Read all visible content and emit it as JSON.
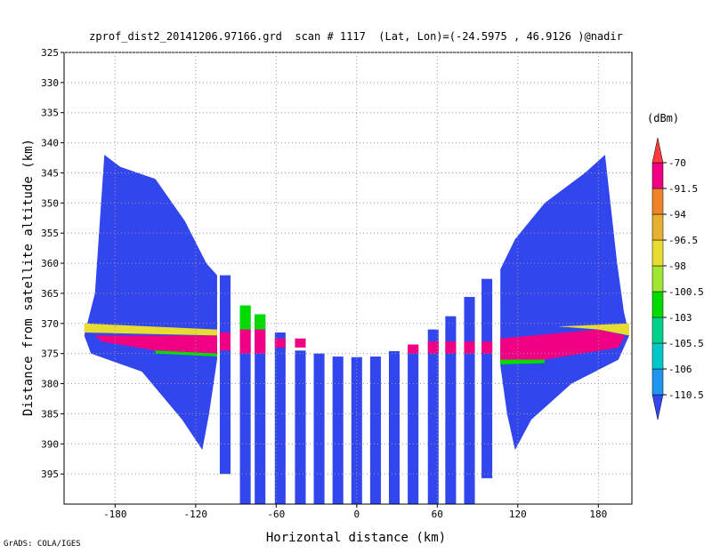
{
  "chart_data": {
    "type": "field",
    "title": "zprof_dist2_20141206.97166.grd  scan # 1117  (Lat, Lon)=(-24.5975 , 46.9126 )@nadir",
    "x_label": "Horizontal distance (km)",
    "y_label": "Distance from satellite altitude (km)",
    "credit": "GrADS: COLA/IGES",
    "xlim": [
      -218,
      205
    ],
    "ylim": [
      400,
      325
    ],
    "xticks": [
      -180,
      -120,
      -60,
      0,
      60,
      120,
      180
    ],
    "yticks": [
      325,
      330,
      335,
      340,
      345,
      350,
      355,
      360,
      365,
      370,
      375,
      380,
      385,
      390,
      395
    ],
    "grid": true,
    "colorbar": {
      "label": "(dBm)",
      "levels": [
        -110.5,
        -106,
        -105.5,
        -103,
        -100.5,
        -98,
        -96.5,
        -94,
        -91.5,
        -70
      ],
      "colors": [
        "#3246ee",
        "#1e96f0",
        "#00c8c8",
        "#00d28c",
        "#00dc00",
        "#a0e632",
        "#e6dc32",
        "#e6af2d",
        "#f08228",
        "#f00082",
        "#fa3c3c"
      ]
    },
    "regions": [
      {
        "value": -112,
        "x": [
          -188,
          -176,
          -150,
          -128,
          -112,
          -104,
          -104,
          -110,
          -115,
          -130,
          -160,
          -198,
          -203,
          -195
        ],
        "y": [
          342,
          344,
          346,
          353,
          360,
          362,
          376,
          385,
          391,
          386,
          378,
          375,
          372,
          365
        ]
      },
      {
        "value": -112,
        "x": [
          185,
          189,
          194,
          199,
          203,
          195,
          160,
          130,
          118,
          112,
          107,
          107,
          118,
          140,
          170
        ],
        "y": [
          342,
          350,
          360,
          368,
          372,
          376,
          380,
          386,
          391,
          385,
          377,
          361,
          356,
          350,
          345
        ]
      },
      {
        "value": -97,
        "x": [
          -203,
          -104,
          -104,
          -203
        ],
        "y": [
          370,
          371,
          372,
          371.5
        ]
      },
      {
        "value": -80,
        "x": [
          -195,
          -104,
          -104,
          -150,
          -190
        ],
        "y": [
          372,
          372,
          375,
          374.5,
          373
        ]
      },
      {
        "value": -102,
        "x": [
          -150,
          -104,
          -104,
          -150
        ],
        "y": [
          374.5,
          375,
          375.5,
          375
        ]
      },
      {
        "value": -97,
        "x": [
          150,
          203,
          203,
          180
        ],
        "y": [
          370.5,
          370,
          372,
          371
        ]
      },
      {
        "value": -80,
        "x": [
          107,
          180,
          200,
          195,
          140,
          107
        ],
        "y": [
          372.5,
          371,
          372,
          374,
          376,
          376
        ]
      },
      {
        "value": -102,
        "x": [
          107,
          140,
          140,
          107
        ],
        "y": [
          376,
          376,
          376.6,
          376.8
        ]
      }
    ],
    "strips": [
      {
        "value": -112,
        "width": 8,
        "x": [
          -98,
          -83,
          -72,
          -57,
          -42,
          -28,
          -14,
          0,
          14,
          28,
          42,
          57,
          70,
          84,
          97
        ],
        "top": [
          362,
          367.5,
          368.5,
          371.5,
          374.5,
          375,
          375.5,
          375.6,
          375.5,
          374.6,
          374,
          371,
          368.8,
          365.6,
          362.6
        ],
        "bottom": [
          395,
          400,
          400,
          400,
          400,
          400,
          400,
          400,
          400,
          400,
          400,
          400,
          400,
          400,
          395.7
        ]
      },
      {
        "value": -102,
        "width": 8,
        "x": [
          -83,
          -72
        ],
        "top": [
          367,
          368.5
        ],
        "bottom": [
          371,
          371
        ]
      },
      {
        "value": -80,
        "width": 8,
        "x": [
          -98,
          -83,
          -72,
          -57,
          -42,
          42,
          57,
          70,
          84,
          97
        ],
        "top": [
          371.5,
          371,
          371,
          372.5,
          372.5,
          373.5,
          373,
          373,
          373,
          373
        ],
        "bottom": [
          374.5,
          375,
          375,
          374,
          374,
          375,
          375,
          375,
          375,
          375
        ]
      }
    ]
  }
}
